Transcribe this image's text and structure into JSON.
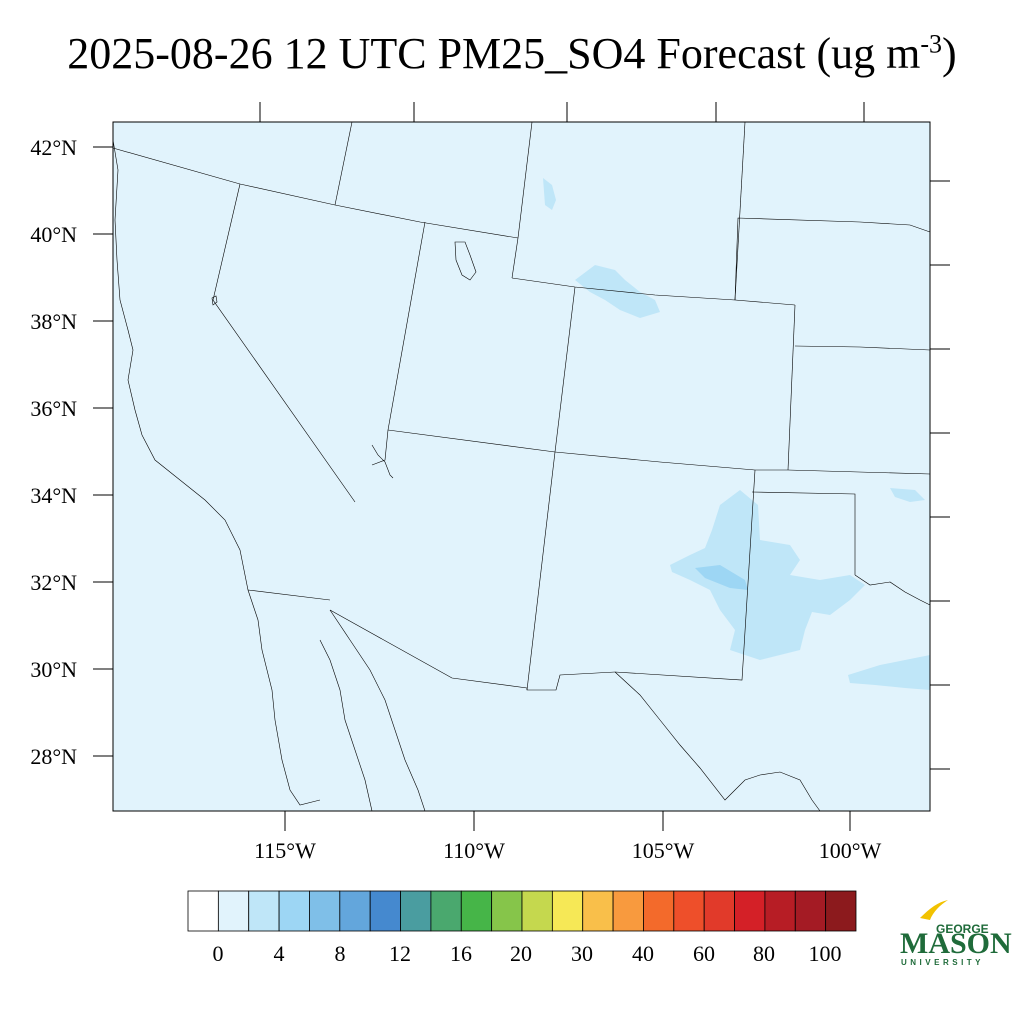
{
  "title": {
    "main": "2025-08-26 12 UTC PM25_SO4 Forecast (ug m",
    "exponent": "-3",
    "close": ")"
  },
  "axes": {
    "lat_labels": [
      "42°N",
      "40°N",
      "38°N",
      "36°N",
      "34°N",
      "32°N",
      "30°N",
      "28°N"
    ],
    "lon_labels": [
      "115°W",
      "110°W",
      "105°W",
      "100°W"
    ]
  },
  "colorbar": {
    "labels": [
      "0",
      "4",
      "8",
      "12",
      "16",
      "20",
      "30",
      "40",
      "60",
      "80",
      "100"
    ],
    "colors": [
      "#ffffff",
      "#e1f3fc",
      "#bfe6f8",
      "#9dd6f4",
      "#7fbfe8",
      "#63a6dc",
      "#4589cf",
      "#4a9da0",
      "#4aa86e",
      "#46b548",
      "#86c54a",
      "#c5d84e",
      "#f6e856",
      "#f9bf4a",
      "#f89a3e",
      "#f36a2b",
      "#ee4f2a",
      "#e13a2a",
      "#d42027",
      "#b71d25",
      "#a41b24",
      "#8c1a1d"
    ]
  },
  "map": {
    "background_color": "#e1f3fc",
    "light_region_color": "#bfe6f8",
    "mid_region_color": "#9dd6f4"
  },
  "logo": {
    "top": "GEORGE",
    "main": "MASON",
    "bottom": "UNIVERSITY",
    "color": "#1f6b3a",
    "accent": "#f2c200"
  }
}
